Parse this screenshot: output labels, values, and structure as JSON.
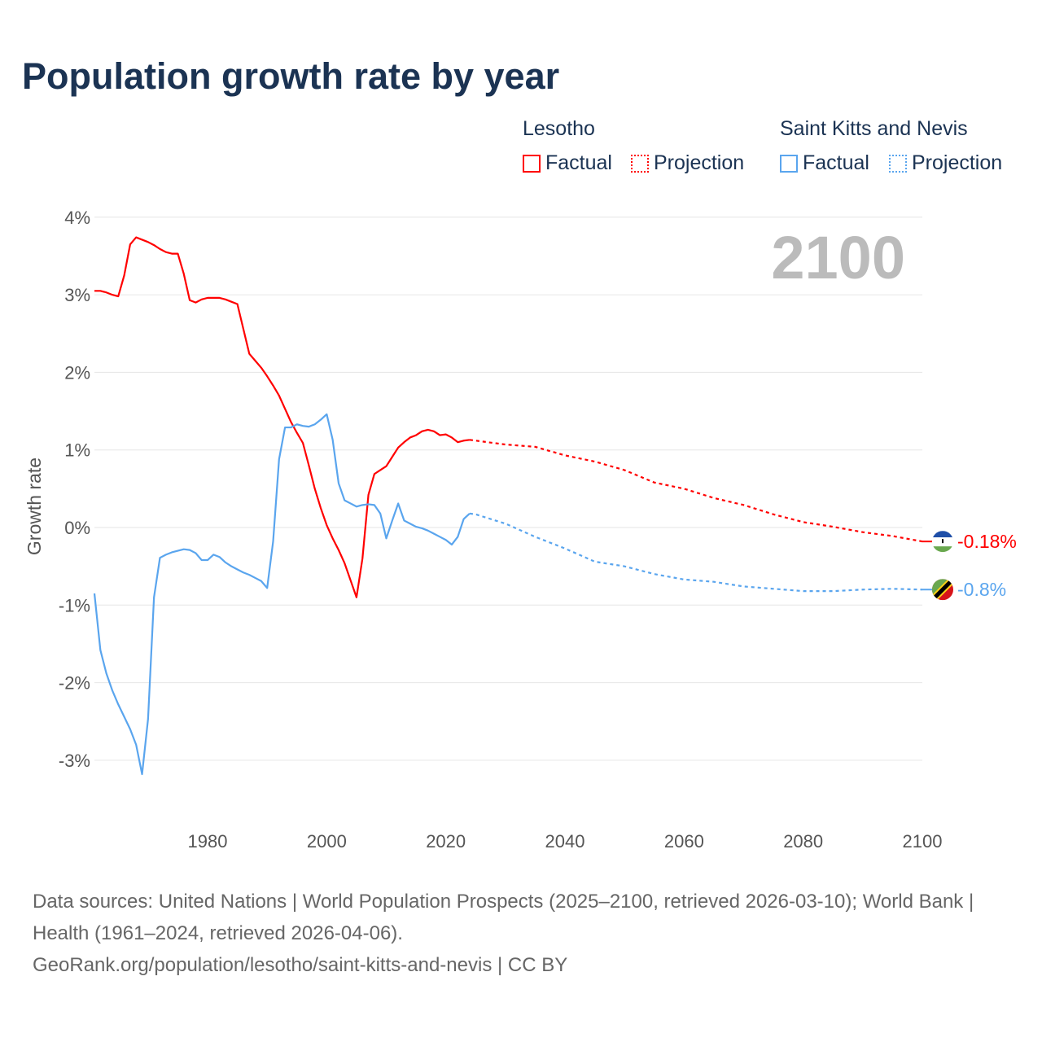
{
  "title": "Population growth rate by year",
  "legend": {
    "groups": [
      {
        "name": "Lesotho",
        "color": "#ff0000",
        "factual": "Factual",
        "projection": "Projection"
      },
      {
        "name": "Saint Kitts and Nevis",
        "color": "#5aa5ee",
        "factual": "Factual",
        "projection": "Projection"
      }
    ]
  },
  "year_label": "2100",
  "footer": {
    "sources": "Data sources: United Nations | World Population Prospects (2025–2100, retrieved 2026-03-10); World Bank | Health (1961–2024, retrieved 2026-04-06).",
    "credit": "GeoRank.org/population/lesotho/saint-kitts-and-nevis | CC BY"
  },
  "chart_data": {
    "type": "line",
    "title": "Population growth rate by year",
    "xlabel": "",
    "ylabel": "Growth rate",
    "xlim": [
      1961,
      2100
    ],
    "ylim": [
      -3.6,
      4.1
    ],
    "x_ticks": [
      "1980",
      "2000",
      "2020",
      "2040",
      "2060",
      "2080",
      "2100"
    ],
    "x_tick_values": [
      1980,
      2000,
      2020,
      2040,
      2060,
      2080,
      2100
    ],
    "y_ticks": [
      "4%",
      "3%",
      "2%",
      "1%",
      "0%",
      "-1%",
      "-2%",
      "-3%"
    ],
    "y_tick_values": [
      4,
      3,
      2,
      1,
      0,
      -1,
      -2,
      -3
    ],
    "grid": true,
    "series": [
      {
        "name": "Lesotho",
        "color": "#ff0000",
        "end_label": "-0.18%",
        "factual_start": 1961,
        "factual": [
          3.05,
          3.05,
          3.03,
          3.0,
          2.98,
          3.25,
          3.65,
          3.74,
          3.71,
          3.68,
          3.64,
          3.59,
          3.55,
          3.53,
          3.53,
          3.27,
          2.93,
          2.9,
          2.94,
          2.96,
          2.96,
          2.96,
          2.94,
          2.91,
          2.88,
          2.56,
          2.24,
          2.15,
          2.06,
          1.95,
          1.83,
          1.7,
          1.53,
          1.36,
          1.22,
          1.09,
          0.8,
          0.5,
          0.25,
          0.03,
          -0.14,
          -0.29,
          -0.46,
          -0.68,
          -0.9,
          -0.4,
          0.42,
          0.69,
          0.74,
          0.79,
          0.91,
          1.03,
          1.1,
          1.16,
          1.19,
          1.24,
          1.26,
          1.24,
          1.19,
          1.2,
          1.16,
          1.1,
          1.12,
          1.13
        ],
        "projection_x": [
          2024,
          2025,
          2030,
          2035,
          2040,
          2045,
          2050,
          2055,
          2060,
          2065,
          2070,
          2075,
          2080,
          2085,
          2090,
          2095,
          2100
        ],
        "projection": [
          1.13,
          1.12,
          1.07,
          1.04,
          0.93,
          0.85,
          0.74,
          0.58,
          0.5,
          0.38,
          0.29,
          0.17,
          0.07,
          0.01,
          -0.06,
          -0.11,
          -0.18
        ]
      },
      {
        "name": "Saint Kitts and Nevis",
        "color": "#5aa5ee",
        "end_label": "-0.8%",
        "factual_start": 1961,
        "factual": [
          -0.85,
          -1.58,
          -1.88,
          -2.1,
          -2.28,
          -2.44,
          -2.6,
          -2.8,
          -3.18,
          -2.47,
          -0.9,
          -0.39,
          -0.35,
          -0.32,
          -0.3,
          -0.28,
          -0.29,
          -0.33,
          -0.42,
          -0.42,
          -0.35,
          -0.38,
          -0.45,
          -0.5,
          -0.54,
          -0.58,
          -0.61,
          -0.65,
          -0.69,
          -0.78,
          -0.18,
          0.88,
          1.29,
          1.29,
          1.33,
          1.31,
          1.3,
          1.33,
          1.39,
          1.46,
          1.13,
          0.57,
          0.35,
          0.31,
          0.27,
          0.29,
          0.3,
          0.29,
          0.18,
          -0.14,
          0.09,
          0.31,
          0.09,
          0.05,
          0.01,
          -0.01,
          -0.04,
          -0.08,
          -0.12,
          -0.16,
          -0.22,
          -0.12,
          0.11,
          0.18
        ],
        "projection_x": [
          2024,
          2025,
          2030,
          2035,
          2040,
          2045,
          2050,
          2055,
          2060,
          2065,
          2070,
          2075,
          2080,
          2085,
          2090,
          2095,
          2100
        ],
        "projection": [
          0.18,
          0.17,
          0.05,
          -0.12,
          -0.27,
          -0.44,
          -0.5,
          -0.6,
          -0.67,
          -0.7,
          -0.76,
          -0.79,
          -0.82,
          -0.82,
          -0.8,
          -0.79,
          -0.8
        ]
      }
    ]
  }
}
